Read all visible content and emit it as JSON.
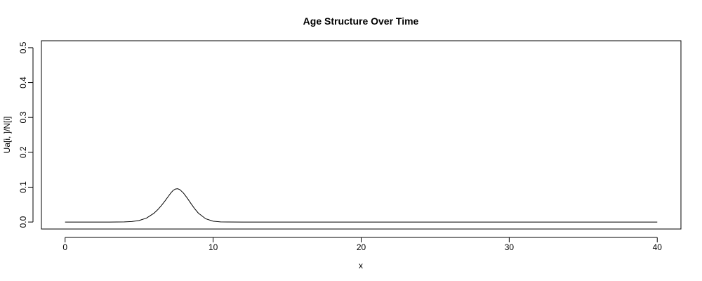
{
  "chart_data": {
    "type": "line",
    "title": "Age Structure Over Time",
    "xlabel": "x",
    "ylabel": "Ua[i, ]/N[i]",
    "xlim": [
      -1.6,
      41.6
    ],
    "ylim": [
      -0.02,
      0.52
    ],
    "x_ticks": [
      0,
      10,
      20,
      30,
      40
    ],
    "y_ticks": [
      0.0,
      0.1,
      0.2,
      0.3,
      0.4,
      0.5
    ],
    "x_tick_labels": [
      "0",
      "10",
      "20",
      "30",
      "40"
    ],
    "y_tick_labels": [
      "0.0",
      "0.1",
      "0.2",
      "0.3",
      "0.4",
      "0.5"
    ],
    "grid": false,
    "legend": "none",
    "line_color": "#000000",
    "series": [
      {
        "x": [
          0,
          1,
          2,
          3,
          4,
          4.5,
          5,
          5.5,
          6,
          6.25,
          6.5,
          6.75,
          7,
          7.15,
          7.3,
          7.45,
          7.6,
          7.75,
          8,
          8.25,
          8.5,
          8.75,
          9,
          9.5,
          10,
          10.5,
          11,
          12,
          15,
          20,
          25,
          30,
          35,
          40
        ],
        "y": [
          0,
          0,
          0,
          0,
          0.0004,
          0.0015,
          0.0044,
          0.0114,
          0.0252,
          0.0351,
          0.0472,
          0.0608,
          0.0752,
          0.0839,
          0.0908,
          0.0947,
          0.0955,
          0.0931,
          0.0829,
          0.0688,
          0.0532,
          0.0383,
          0.0256,
          0.0093,
          0.0025,
          0.0005,
          0.0001,
          0,
          0,
          0,
          0,
          0,
          0,
          0
        ]
      }
    ]
  }
}
